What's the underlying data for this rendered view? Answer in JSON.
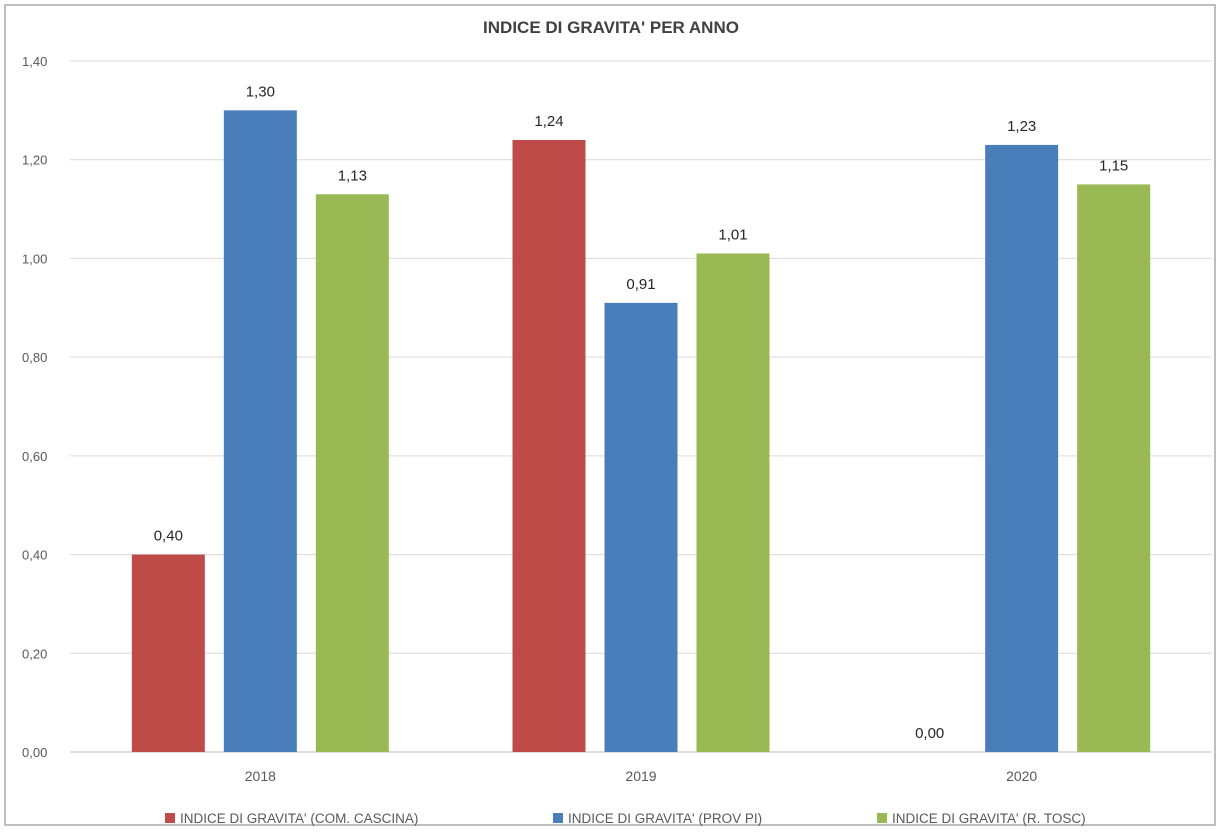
{
  "chart_data": {
    "type": "bar",
    "title": "INDICE DI GRAVITA' PER ANNO",
    "xlabel": "",
    "ylabel": "",
    "categories": [
      "2018",
      "2019",
      "2020"
    ],
    "series": [
      {
        "name": "INDICE DI GRAVITA' (COM. CASCINA)",
        "color": "#be4b48",
        "values": [
          0.4,
          1.24,
          0.0
        ],
        "labels": [
          "0,40",
          "1,24",
          "0,00"
        ]
      },
      {
        "name": "INDICE DI GRAVITA' (PROV PI)",
        "color": "#4a7ebb",
        "values": [
          1.3,
          0.91,
          1.23
        ],
        "labels": [
          "1,30",
          "0,91",
          "1,23"
        ]
      },
      {
        "name": "INDICE DI GRAVITA' (R. TOSC)",
        "color": "#98b954",
        "values": [
          1.13,
          1.01,
          1.15
        ],
        "labels": [
          "1,13",
          "1,01",
          "1,15"
        ]
      }
    ],
    "ylim": [
      0,
      1.4
    ],
    "yticks": [
      0,
      0.2,
      0.4,
      0.6,
      0.8,
      1.0,
      1.2,
      1.4
    ],
    "ytick_labels": [
      "0,00",
      "0,20",
      "0,40",
      "0,60",
      "0,80",
      "1,00",
      "1,20",
      "1,40"
    ],
    "grid": true,
    "legend_position": "bottom"
  }
}
